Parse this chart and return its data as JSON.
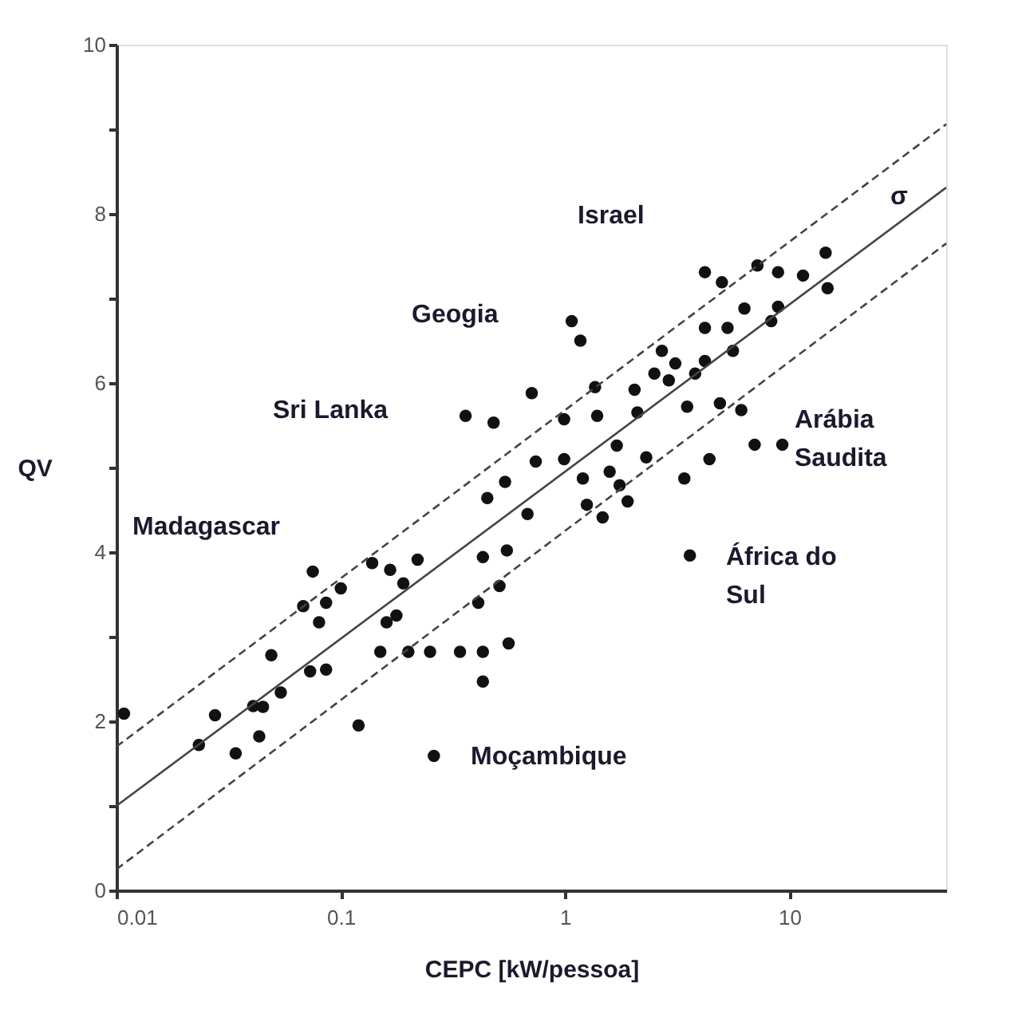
{
  "chart_data": {
    "type": "scatter",
    "xlabel": "CEPC [kW/pessoa]",
    "ylabel": "QV",
    "log": "x",
    "grid": false,
    "marker": "circle",
    "xlim": [
      0.01,
      50
    ],
    "xticks": [
      0.01,
      0.1,
      1,
      10
    ],
    "ylim": [
      0,
      10
    ],
    "yticks": [
      0,
      {
        "value": 1,
        "label": null
      },
      2,
      {
        "value": 3,
        "label": null
      },
      4,
      {
        "value": 5,
        "label": null
      },
      6,
      {
        "value": 7,
        "label": null
      },
      8,
      {
        "value": 9,
        "label": null
      },
      10
    ],
    "series": [
      {
        "color": "#111111",
        "x": [
          0.0108,
          0.0233,
          0.0275,
          0.034,
          0.0407,
          0.045,
          0.0433,
          0.049,
          0.054,
          0.068,
          0.075,
          0.073,
          0.086,
          0.08,
          0.086,
          0.1,
          0.12,
          0.138,
          0.15,
          0.16,
          0.177,
          0.166,
          0.19,
          0.22,
          0.2,
          0.25,
          0.26,
          0.34,
          0.36,
          0.41,
          0.43,
          0.43,
          0.43,
          0.48,
          0.45,
          0.51,
          0.54,
          0.55,
          0.56,
          0.68,
          0.71,
          0.74,
          0.99,
          0.99,
          1.07,
          1.17,
          1.2,
          1.25,
          1.36,
          1.39,
          1.47,
          1.58,
          1.7,
          1.75,
          1.9,
          2.04,
          2.1,
          2.3,
          2.5,
          2.7,
          2.9,
          3.1,
          3.4,
          3.5,
          3.6,
          3.8,
          4.2,
          4.2,
          4.4,
          4.2,
          4.9,
          5.0,
          5.3,
          5.6,
          6.1,
          6.3,
          7.0,
          7.2,
          8.3,
          8.9,
          8.9,
          9.3,
          11.5,
          14.5,
          14.8
        ],
        "values": [
          2.09,
          1.72,
          2.07,
          1.62,
          2.18,
          2.17,
          1.82,
          2.78,
          2.34,
          3.36,
          3.77,
          2.59,
          2.61,
          3.17,
          3.4,
          3.57,
          1.95,
          3.87,
          2.82,
          3.17,
          3.25,
          3.79,
          3.63,
          3.91,
          2.82,
          2.82,
          1.59,
          2.82,
          5.61,
          3.4,
          2.82,
          2.47,
          3.94,
          5.53,
          4.64,
          3.6,
          4.83,
          4.02,
          2.92,
          4.45,
          5.88,
          5.07,
          5.1,
          5.57,
          6.73,
          6.5,
          4.87,
          4.56,
          5.95,
          5.61,
          4.41,
          4.95,
          5.26,
          4.79,
          4.6,
          5.92,
          5.65,
          5.12,
          6.11,
          6.38,
          6.03,
          6.23,
          4.87,
          5.72,
          3.96,
          6.11,
          6.26,
          6.65,
          5.1,
          7.31,
          5.76,
          7.19,
          6.65,
          6.38,
          5.68,
          6.88,
          5.27,
          7.39,
          6.73,
          7.31,
          6.9,
          5.27,
          7.27,
          7.54,
          7.12
        ]
      },
      {
        "type": "line",
        "marker": "none",
        "color": "#444444",
        "line_style": "solid",
        "x": [
          0.01,
          50
        ],
        "values": [
          1.0,
          8.31
        ]
      },
      {
        "type": "line",
        "marker": "none",
        "color": "#444444",
        "line_style": "dashed",
        "x": [
          0.01,
          50
        ],
        "values": [
          1.7,
          9.06
        ]
      },
      {
        "type": "line",
        "marker": "none",
        "color": "#444444",
        "line_style": "dashed",
        "x": [
          0.01,
          50
        ],
        "values": [
          0.25,
          7.65
        ]
      }
    ],
    "annotations": [
      "Madagascar",
      "Sri Lanka",
      "Geogia",
      "Israel",
      "Arábia\nSaudita",
      "África do\nSul",
      "Moçambique",
      "σ"
    ]
  }
}
